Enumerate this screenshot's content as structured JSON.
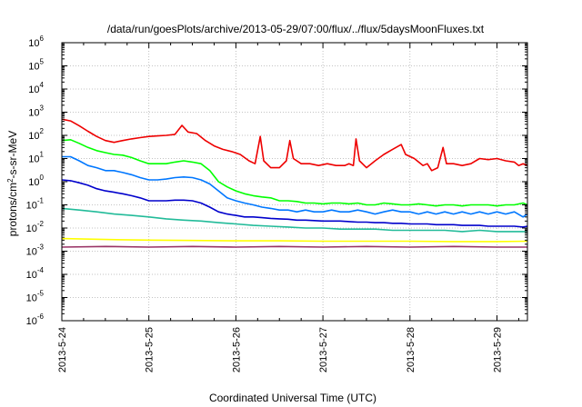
{
  "chart_data": {
    "type": "line",
    "title": "/data/run/goesPlots/archive/2013-05-29/07:00/flux/../flux/5daysMoonFluxes.txt",
    "xlabel": "Coordinated Universal Time (UTC)",
    "ylabel": "protons/cm2-s-sr-MeV",
    "ylabel_parts": [
      "protons/cm",
      "2",
      "-s-sr-MeV"
    ],
    "yscale": "log",
    "ylim_exp": [
      -6,
      6
    ],
    "xlim_days": [
      0,
      5.35
    ],
    "x_tick_labels": [
      "2013-5-24",
      "2013-5-25",
      "2013-5-26",
      "2013-5-27",
      "2013-5-28",
      "2013-5-29"
    ],
    "y_tick_labels": [
      {
        "base": "10",
        "exp": "-6"
      },
      {
        "base": "10",
        "exp": "-5"
      },
      {
        "base": "10",
        "exp": "-4"
      },
      {
        "base": "10",
        "exp": "-3"
      },
      {
        "base": "10",
        "exp": "-2"
      },
      {
        "base": "10",
        "exp": "-1"
      },
      {
        "base": "10",
        "exp": "0"
      },
      {
        "base": "10",
        "exp": "1"
      },
      {
        "base": "10",
        "exp": "2"
      },
      {
        "base": "10",
        "exp": "3"
      },
      {
        "base": "10",
        "exp": "4"
      },
      {
        "base": "10",
        "exp": "5"
      },
      {
        "base": "10",
        "exp": "6"
      }
    ],
    "grid": true,
    "legend": "none",
    "series": [
      {
        "color": "#ee0000",
        "points": [
          [
            0,
            500
          ],
          [
            0.1,
            420
          ],
          [
            0.2,
            260
          ],
          [
            0.3,
            150
          ],
          [
            0.4,
            90
          ],
          [
            0.5,
            60
          ],
          [
            0.6,
            50
          ],
          [
            0.7,
            60
          ],
          [
            0.8,
            70
          ],
          [
            0.9,
            80
          ],
          [
            1.0,
            90
          ],
          [
            1.1,
            95
          ],
          [
            1.2,
            100
          ],
          [
            1.3,
            110
          ],
          [
            1.38,
            270
          ],
          [
            1.45,
            140
          ],
          [
            1.55,
            120
          ],
          [
            1.65,
            60
          ],
          [
            1.75,
            35
          ],
          [
            1.85,
            25
          ],
          [
            1.95,
            20
          ],
          [
            2.05,
            15
          ],
          [
            2.15,
            8
          ],
          [
            2.22,
            6
          ],
          [
            2.28,
            90
          ],
          [
            2.32,
            8
          ],
          [
            2.4,
            4
          ],
          [
            2.5,
            4
          ],
          [
            2.58,
            8
          ],
          [
            2.62,
            60
          ],
          [
            2.66,
            10
          ],
          [
            2.75,
            6
          ],
          [
            2.85,
            6
          ],
          [
            2.95,
            5
          ],
          [
            3.05,
            6
          ],
          [
            3.15,
            5
          ],
          [
            3.25,
            5
          ],
          [
            3.3,
            6
          ],
          [
            3.35,
            5
          ],
          [
            3.38,
            70
          ],
          [
            3.42,
            8
          ],
          [
            3.5,
            4
          ],
          [
            3.6,
            8
          ],
          [
            3.7,
            15
          ],
          [
            3.8,
            25
          ],
          [
            3.9,
            40
          ],
          [
            3.95,
            15
          ],
          [
            4.05,
            10
          ],
          [
            4.15,
            5
          ],
          [
            4.2,
            6
          ],
          [
            4.25,
            3
          ],
          [
            4.32,
            4
          ],
          [
            4.38,
            30
          ],
          [
            4.42,
            6
          ],
          [
            4.5,
            6
          ],
          [
            4.6,
            5
          ],
          [
            4.7,
            6
          ],
          [
            4.8,
            10
          ],
          [
            4.9,
            9
          ],
          [
            5.0,
            10
          ],
          [
            5.1,
            8
          ],
          [
            5.2,
            7
          ],
          [
            5.25,
            5
          ],
          [
            5.3,
            6
          ],
          [
            5.35,
            5
          ]
        ]
      },
      {
        "color": "#00ff00",
        "points": [
          [
            0,
            60
          ],
          [
            0.1,
            65
          ],
          [
            0.2,
            45
          ],
          [
            0.3,
            30
          ],
          [
            0.4,
            22
          ],
          [
            0.5,
            18
          ],
          [
            0.6,
            15
          ],
          [
            0.7,
            14
          ],
          [
            0.8,
            11
          ],
          [
            0.9,
            8
          ],
          [
            1.0,
            6
          ],
          [
            1.1,
            6
          ],
          [
            1.2,
            6
          ],
          [
            1.3,
            7
          ],
          [
            1.4,
            8
          ],
          [
            1.5,
            7
          ],
          [
            1.6,
            6
          ],
          [
            1.7,
            3
          ],
          [
            1.8,
            1.0
          ],
          [
            1.9,
            0.6
          ],
          [
            2.0,
            0.4
          ],
          [
            2.1,
            0.3
          ],
          [
            2.2,
            0.25
          ],
          [
            2.3,
            0.22
          ],
          [
            2.4,
            0.2
          ],
          [
            2.5,
            0.15
          ],
          [
            2.6,
            0.15
          ],
          [
            2.7,
            0.14
          ],
          [
            2.8,
            0.12
          ],
          [
            2.9,
            0.12
          ],
          [
            3.0,
            0.11
          ],
          [
            3.1,
            0.12
          ],
          [
            3.2,
            0.12
          ],
          [
            3.3,
            0.11
          ],
          [
            3.4,
            0.12
          ],
          [
            3.5,
            0.1
          ],
          [
            3.6,
            0.1
          ],
          [
            3.7,
            0.12
          ],
          [
            3.8,
            0.11
          ],
          [
            3.9,
            0.1
          ],
          [
            4.0,
            0.1
          ],
          [
            4.1,
            0.11
          ],
          [
            4.2,
            0.1
          ],
          [
            4.3,
            0.09
          ],
          [
            4.4,
            0.1
          ],
          [
            4.5,
            0.1
          ],
          [
            4.6,
            0.09
          ],
          [
            4.7,
            0.1
          ],
          [
            4.8,
            0.1
          ],
          [
            4.9,
            0.1
          ],
          [
            5.0,
            0.09
          ],
          [
            5.1,
            0.1
          ],
          [
            5.2,
            0.1
          ],
          [
            5.3,
            0.12
          ],
          [
            5.35,
            0.1
          ]
        ]
      },
      {
        "color": "#0077ff",
        "points": [
          [
            0,
            12
          ],
          [
            0.1,
            12
          ],
          [
            0.2,
            8
          ],
          [
            0.3,
            5
          ],
          [
            0.4,
            4
          ],
          [
            0.5,
            3
          ],
          [
            0.6,
            3
          ],
          [
            0.7,
            2.5
          ],
          [
            0.8,
            2
          ],
          [
            0.9,
            1.5
          ],
          [
            1.0,
            1.2
          ],
          [
            1.1,
            1.2
          ],
          [
            1.2,
            1.3
          ],
          [
            1.3,
            1.5
          ],
          [
            1.4,
            1.6
          ],
          [
            1.5,
            1.5
          ],
          [
            1.6,
            1.2
          ],
          [
            1.7,
            0.8
          ],
          [
            1.8,
            0.4
          ],
          [
            1.9,
            0.2
          ],
          [
            2.0,
            0.15
          ],
          [
            2.1,
            0.12
          ],
          [
            2.2,
            0.1
          ],
          [
            2.3,
            0.08
          ],
          [
            2.4,
            0.07
          ],
          [
            2.5,
            0.06
          ],
          [
            2.6,
            0.06
          ],
          [
            2.7,
            0.05
          ],
          [
            2.8,
            0.06
          ],
          [
            2.9,
            0.05
          ],
          [
            3.0,
            0.05
          ],
          [
            3.1,
            0.06
          ],
          [
            3.2,
            0.05
          ],
          [
            3.3,
            0.05
          ],
          [
            3.4,
            0.06
          ],
          [
            3.5,
            0.05
          ],
          [
            3.6,
            0.04
          ],
          [
            3.7,
            0.05
          ],
          [
            3.8,
            0.06
          ],
          [
            3.9,
            0.05
          ],
          [
            4.0,
            0.05
          ],
          [
            4.1,
            0.04
          ],
          [
            4.2,
            0.05
          ],
          [
            4.3,
            0.04
          ],
          [
            4.4,
            0.05
          ],
          [
            4.5,
            0.04
          ],
          [
            4.6,
            0.05
          ],
          [
            4.7,
            0.04
          ],
          [
            4.8,
            0.05
          ],
          [
            4.9,
            0.04
          ],
          [
            5.0,
            0.05
          ],
          [
            5.1,
            0.04
          ],
          [
            5.2,
            0.05
          ],
          [
            5.3,
            0.03
          ],
          [
            5.35,
            0.04
          ]
        ]
      },
      {
        "color": "#0000cc",
        "points": [
          [
            0,
            1.2
          ],
          [
            0.1,
            1.1
          ],
          [
            0.2,
            0.9
          ],
          [
            0.3,
            0.7
          ],
          [
            0.4,
            0.5
          ],
          [
            0.5,
            0.4
          ],
          [
            0.6,
            0.35
          ],
          [
            0.7,
            0.3
          ],
          [
            0.8,
            0.25
          ],
          [
            0.9,
            0.2
          ],
          [
            1.0,
            0.15
          ],
          [
            1.1,
            0.15
          ],
          [
            1.2,
            0.15
          ],
          [
            1.3,
            0.16
          ],
          [
            1.4,
            0.16
          ],
          [
            1.5,
            0.15
          ],
          [
            1.6,
            0.12
          ],
          [
            1.7,
            0.08
          ],
          [
            1.8,
            0.05
          ],
          [
            1.9,
            0.04
          ],
          [
            2.0,
            0.035
          ],
          [
            2.1,
            0.03
          ],
          [
            2.2,
            0.03
          ],
          [
            2.3,
            0.028
          ],
          [
            2.4,
            0.026
          ],
          [
            2.5,
            0.025
          ],
          [
            2.6,
            0.024
          ],
          [
            2.7,
            0.022
          ],
          [
            2.8,
            0.022
          ],
          [
            2.9,
            0.021
          ],
          [
            3.0,
            0.02
          ],
          [
            3.1,
            0.02
          ],
          [
            3.2,
            0.02
          ],
          [
            3.3,
            0.019
          ],
          [
            3.4,
            0.018
          ],
          [
            3.5,
            0.018
          ],
          [
            3.6,
            0.017
          ],
          [
            3.7,
            0.017
          ],
          [
            3.8,
            0.016
          ],
          [
            3.9,
            0.016
          ],
          [
            4.0,
            0.015
          ],
          [
            4.1,
            0.015
          ],
          [
            4.2,
            0.015
          ],
          [
            4.3,
            0.014
          ],
          [
            4.4,
            0.014
          ],
          [
            4.5,
            0.014
          ],
          [
            4.6,
            0.013
          ],
          [
            4.7,
            0.013
          ],
          [
            4.8,
            0.013
          ],
          [
            4.9,
            0.012
          ],
          [
            5.0,
            0.012
          ],
          [
            5.1,
            0.012
          ],
          [
            5.2,
            0.012
          ],
          [
            5.3,
            0.011
          ],
          [
            5.35,
            0.012
          ]
        ]
      },
      {
        "color": "#22bb99",
        "points": [
          [
            0,
            0.07
          ],
          [
            0.2,
            0.06
          ],
          [
            0.4,
            0.05
          ],
          [
            0.6,
            0.04
          ],
          [
            0.8,
            0.035
          ],
          [
            1.0,
            0.03
          ],
          [
            1.2,
            0.025
          ],
          [
            1.4,
            0.022
          ],
          [
            1.6,
            0.02
          ],
          [
            1.8,
            0.017
          ],
          [
            2.0,
            0.015
          ],
          [
            2.2,
            0.013
          ],
          [
            2.4,
            0.012
          ],
          [
            2.6,
            0.011
          ],
          [
            2.8,
            0.01
          ],
          [
            3.0,
            0.01
          ],
          [
            3.2,
            0.009
          ],
          [
            3.4,
            0.009
          ],
          [
            3.6,
            0.009
          ],
          [
            3.8,
            0.008
          ],
          [
            4.0,
            0.008
          ],
          [
            4.2,
            0.008
          ],
          [
            4.4,
            0.008
          ],
          [
            4.6,
            0.007
          ],
          [
            4.8,
            0.008
          ],
          [
            5.0,
            0.007
          ],
          [
            5.2,
            0.007
          ],
          [
            5.35,
            0.007
          ]
        ]
      },
      {
        "color": "#ffff00",
        "points": [
          [
            0,
            0.0035
          ],
          [
            0.5,
            0.0032
          ],
          [
            1.0,
            0.003
          ],
          [
            1.5,
            0.0029
          ],
          [
            2.0,
            0.0028
          ],
          [
            2.5,
            0.0028
          ],
          [
            3.0,
            0.0027
          ],
          [
            3.5,
            0.0027
          ],
          [
            4.0,
            0.0027
          ],
          [
            4.5,
            0.0026
          ],
          [
            5.0,
            0.0026
          ],
          [
            5.35,
            0.0027
          ]
        ]
      },
      {
        "color": "#993366",
        "points": [
          [
            0,
            0.0015
          ],
          [
            0.5,
            0.0016
          ],
          [
            1.0,
            0.0015
          ],
          [
            1.5,
            0.0016
          ],
          [
            2.0,
            0.0015
          ],
          [
            2.5,
            0.0016
          ],
          [
            3.0,
            0.0015
          ],
          [
            3.5,
            0.0016
          ],
          [
            4.0,
            0.0015
          ],
          [
            4.5,
            0.0016
          ],
          [
            5.0,
            0.0015
          ],
          [
            5.35,
            0.0015
          ]
        ]
      }
    ]
  }
}
